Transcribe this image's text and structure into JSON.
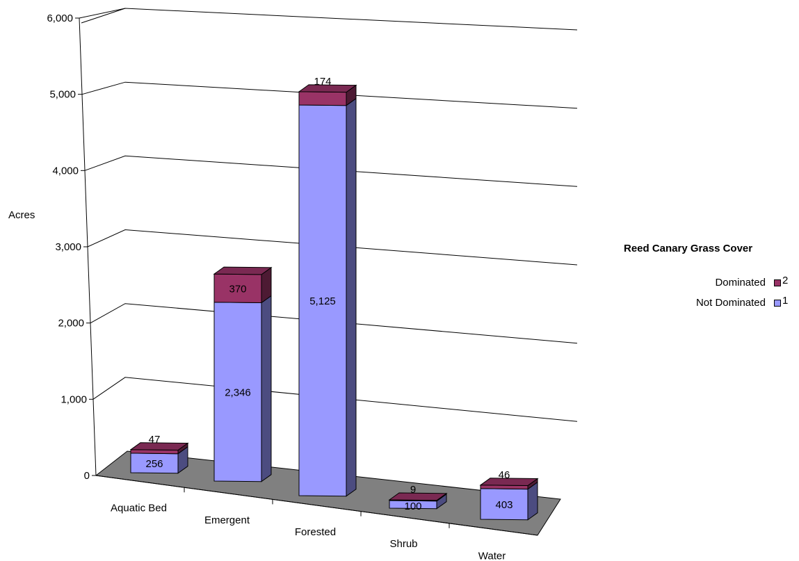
{
  "chart_data": {
    "type": "bar",
    "stacked": true,
    "three_d": true,
    "title": "",
    "xlabel": "",
    "ylabel": "Acres",
    "ylim": [
      0,
      6000
    ],
    "yticks": [
      "0",
      "1,000",
      "2,000",
      "3,000",
      "4,000",
      "5,000",
      "6,000"
    ],
    "ytick_values": [
      0,
      1000,
      2000,
      3000,
      4000,
      5000,
      6000
    ],
    "grid": true,
    "categories": [
      "Aquatic Bed",
      "Emergent",
      "Forested",
      "Shrub",
      "Water"
    ],
    "series": [
      {
        "name": "Not Dominated",
        "code": "1",
        "color": "#9999ff",
        "values": [
          256,
          2346,
          5125,
          100,
          403
        ],
        "labels": [
          "256",
          "2,346",
          "5,125",
          "100",
          "403"
        ]
      },
      {
        "name": "Dominated",
        "code": "2",
        "color": "#993366",
        "values": [
          47,
          370,
          174,
          9,
          46
        ],
        "labels": [
          "47",
          "370",
          "174",
          "9",
          "46"
        ]
      }
    ],
    "legend": {
      "title": "Reed Canary Grass Cover",
      "placement": "right",
      "entries": [
        {
          "name": "Dominated",
          "code": "2",
          "color": "#993366"
        },
        {
          "name": "Not Dominated",
          "code": "1",
          "color": "#9999ff"
        }
      ]
    }
  }
}
